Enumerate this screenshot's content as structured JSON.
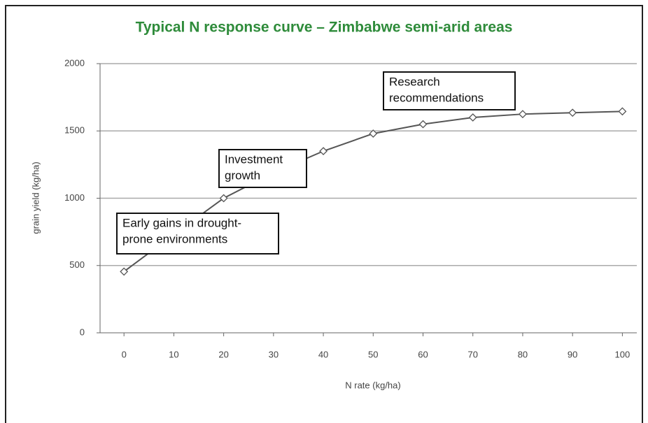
{
  "chart_data": {
    "type": "line",
    "title": "Typical N response curve – Zimbabwe semi-arid areas",
    "xlabel": "N rate (kg/ha)",
    "ylabel": "grain yield (kg/ha)",
    "x": [
      0,
      10,
      20,
      30,
      40,
      50,
      60,
      70,
      80,
      90,
      100
    ],
    "series": [
      {
        "name": "grain yield",
        "color": "#555555",
        "values": [
          455,
          730,
          1000,
          1190,
          1350,
          1480,
          1550,
          1600,
          1625,
          1635,
          1645
        ]
      }
    ],
    "xlim": [
      -4.8,
      105
    ],
    "xticks": [
      0,
      10,
      20,
      30,
      40,
      50,
      60,
      70,
      80,
      90,
      100
    ],
    "ylim": [
      0,
      2000
    ],
    "yticks": [
      0,
      500,
      1000,
      1500,
      2000
    ],
    "grid": true,
    "annotations": [
      {
        "lines": [
          "Early gains in drought-",
          "prone environments"
        ]
      },
      {
        "lines": [
          "Investment",
          "growth"
        ]
      },
      {
        "lines": [
          "Research",
          "recommendations"
        ]
      }
    ]
  }
}
